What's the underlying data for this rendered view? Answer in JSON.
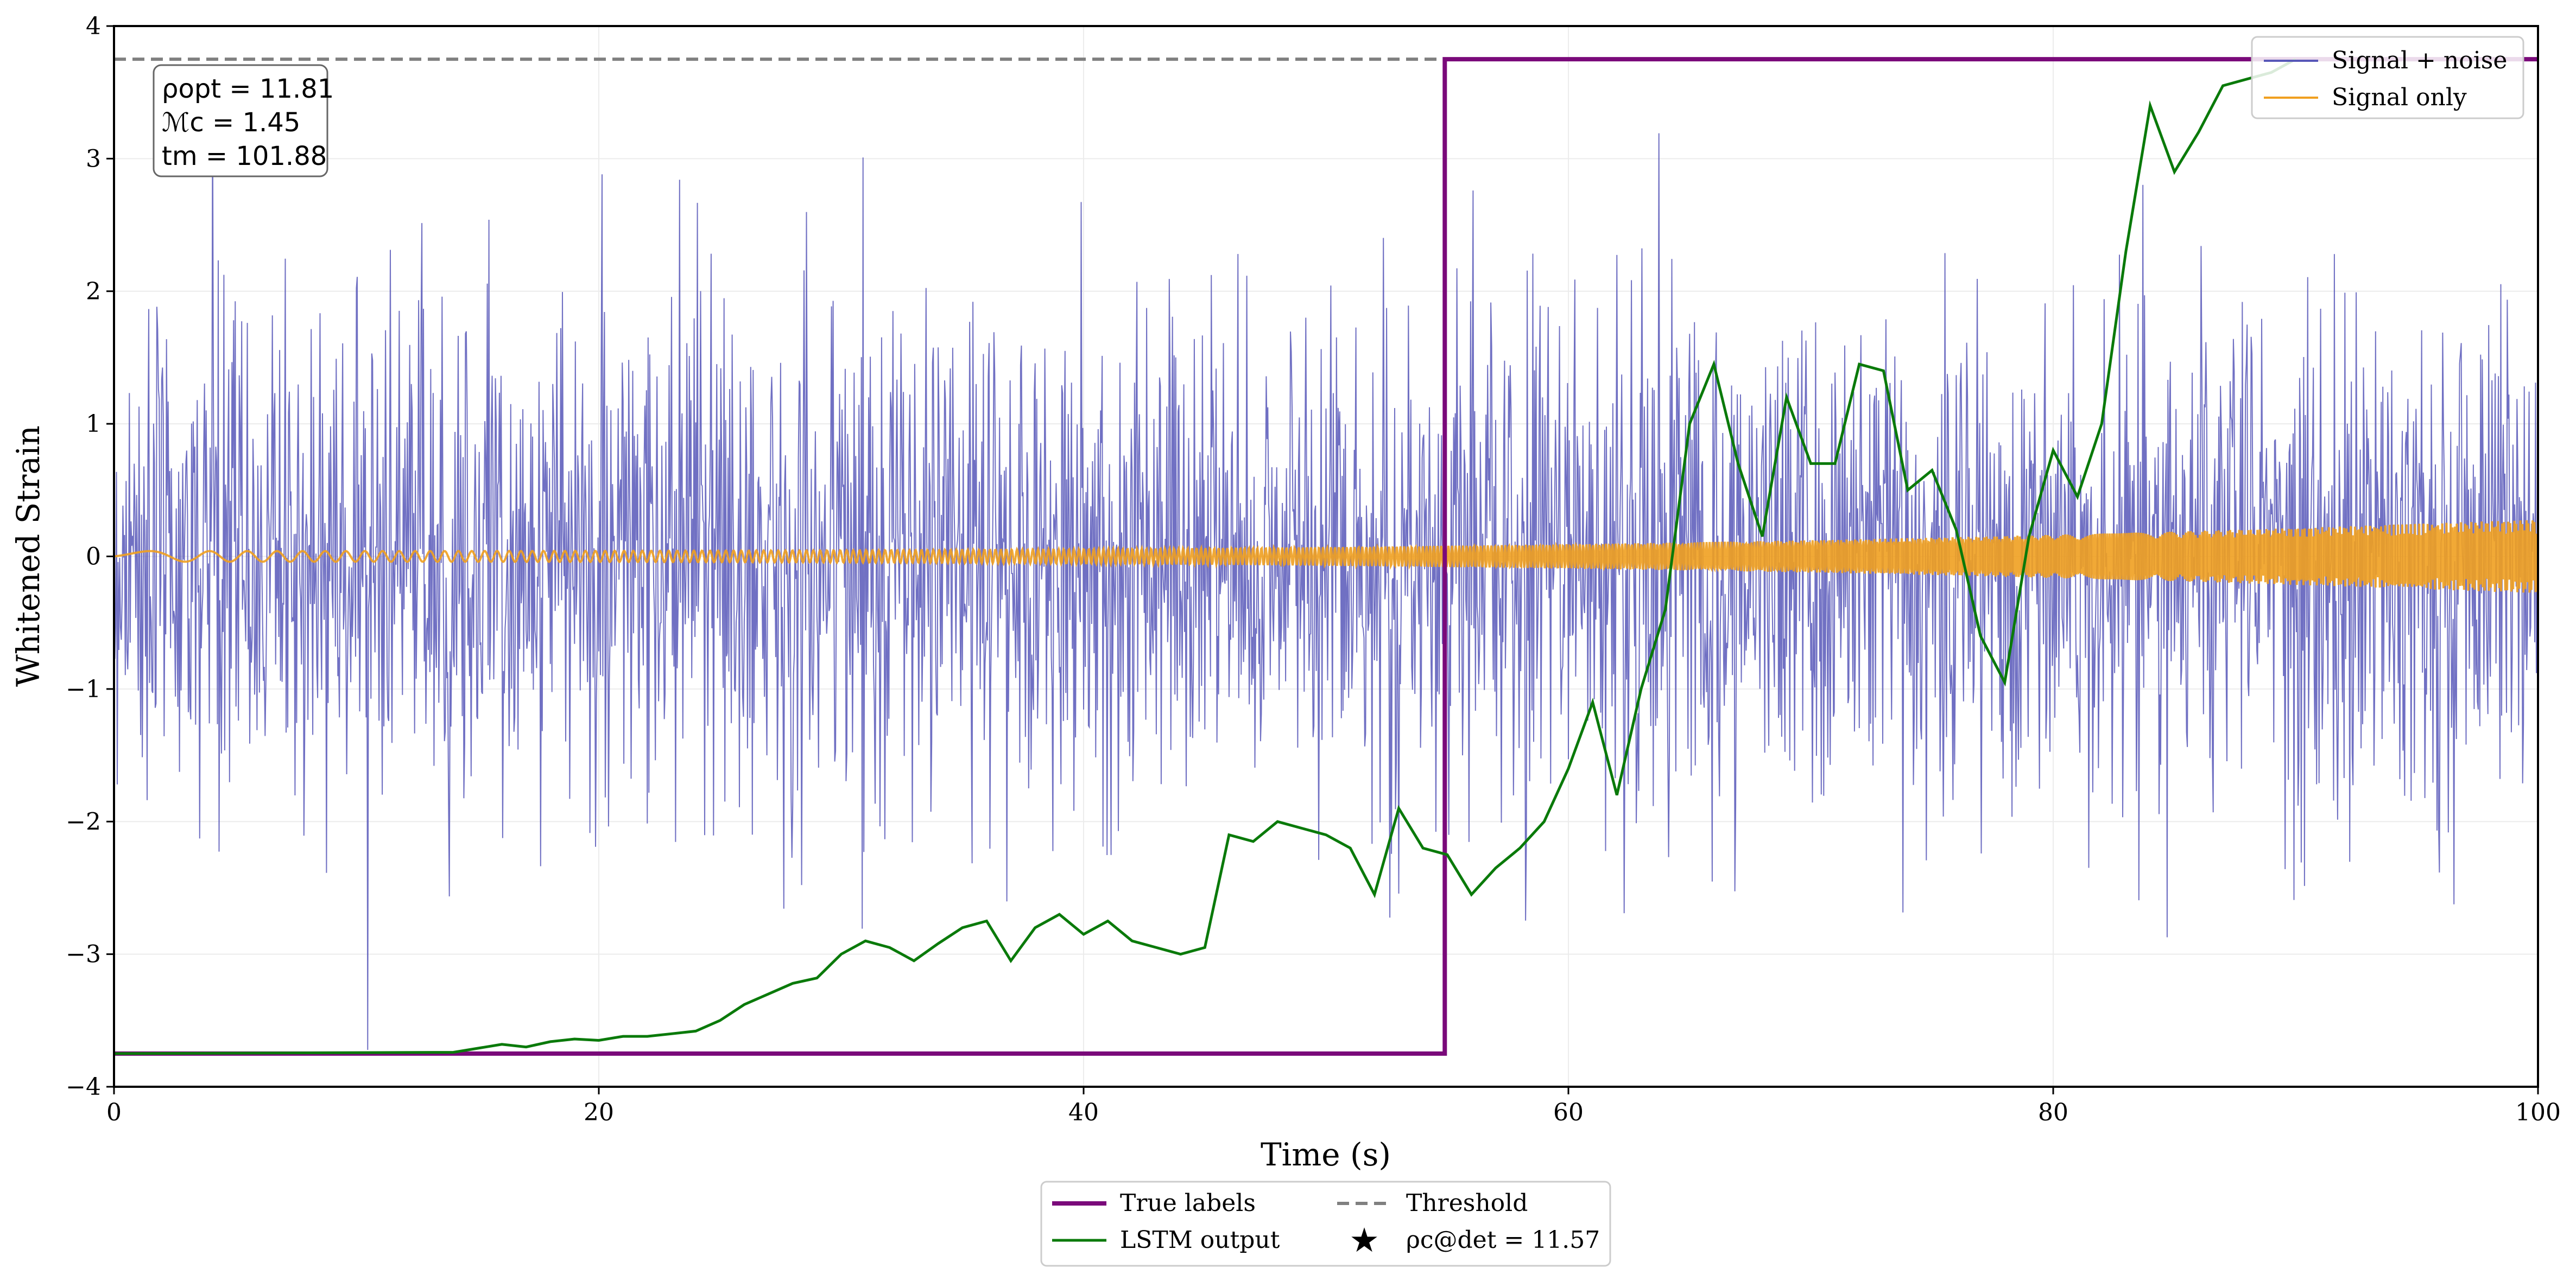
{
  "chart_data": {
    "type": "line",
    "xlabel": "Time (s)",
    "ylabel": "Whitened Strain",
    "xlim": [
      0,
      100
    ],
    "ylim": [
      -4,
      4
    ],
    "x_ticks": [
      0,
      20,
      40,
      60,
      80,
      100
    ],
    "x_tick_labels": [
      "0",
      "20",
      "40",
      "60",
      "80",
      "100"
    ],
    "y_ticks": [
      -4,
      -3,
      -2,
      -1,
      0,
      1,
      2,
      3,
      4
    ],
    "y_tick_labels": [
      "−4",
      "−3",
      "−2",
      "−1",
      "0",
      "1",
      "2",
      "3",
      "4"
    ],
    "grid": true,
    "threshold": 3.75,
    "true_label_step_time": 54.9,
    "true_label_low": -3.75,
    "true_label_high": 3.75,
    "stats": {
      "rho_label": "ρopt = 11.81",
      "m_label": "ℳc = 1.45",
      "t_label": "tm = 101.88"
    },
    "series": [
      {
        "name": "Signal + noise",
        "color": "#5757b8",
        "kind": "noise",
        "amplitude": 0.95
      },
      {
        "name": "Signal only",
        "color": "#f0a020",
        "kind": "chirp",
        "amplitude_start": 0.04,
        "amplitude_end": 0.28
      },
      {
        "name": "True labels",
        "color": "#7a0a7a",
        "kind": "step"
      },
      {
        "name": "LSTM output",
        "color": "#0a7a0a",
        "kind": "line",
        "x": [
          0,
          14,
          16,
          17,
          18,
          19,
          20,
          21,
          22,
          23,
          24,
          25,
          26,
          27,
          28,
          29,
          30,
          31,
          32,
          33,
          34,
          35,
          36,
          37,
          38,
          39,
          40,
          41,
          42,
          43,
          44,
          45,
          46,
          47,
          48,
          49,
          50,
          51,
          52,
          53,
          54,
          55,
          56,
          57,
          58,
          59,
          60,
          61,
          62,
          63,
          64,
          65,
          66,
          67,
          68,
          69,
          70,
          71,
          72,
          73,
          74,
          75,
          76,
          77,
          78,
          79,
          80,
          81,
          82,
          83,
          84,
          85,
          86,
          87,
          88,
          89,
          90
        ],
        "y": [
          -3.75,
          -3.74,
          -3.68,
          -3.7,
          -3.66,
          -3.64,
          -3.65,
          -3.62,
          -3.62,
          -3.6,
          -3.58,
          -3.5,
          -3.38,
          -3.3,
          -3.22,
          -3.18,
          -3.0,
          -2.9,
          -2.95,
          -3.05,
          -2.92,
          -2.8,
          -2.75,
          -3.05,
          -2.8,
          -2.7,
          -2.85,
          -2.75,
          -2.9,
          -2.95,
          -3.0,
          -2.95,
          -2.1,
          -2.15,
          -2.0,
          -2.05,
          -2.1,
          -2.2,
          -2.55,
          -1.9,
          -2.2,
          -2.25,
          -2.55,
          -2.35,
          -2.2,
          -2.0,
          -1.6,
          -1.1,
          -1.8,
          -1.0,
          -0.4,
          1.0,
          1.45,
          0.7,
          0.15,
          1.2,
          0.7,
          0.7,
          1.45,
          1.4,
          0.5,
          0.65,
          0.2,
          -0.6,
          -0.95,
          0.15,
          0.8,
          0.45,
          1.0,
          2.3,
          3.4,
          2.9,
          3.2,
          3.55,
          3.6,
          3.65,
          3.75
        ]
      }
    ],
    "legend_inset": [
      "Signal + noise",
      "Signal only"
    ],
    "legend_bottom": {
      "true_labels": "True labels",
      "lstm_output": "LSTM output",
      "threshold": "Threshold",
      "detection": "ρc@det = 11.57"
    },
    "detection_value": 11.57
  }
}
